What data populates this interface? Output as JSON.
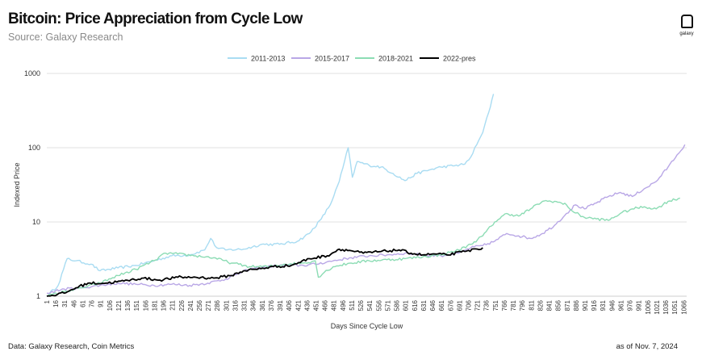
{
  "header": {
    "title": "Bitcoin: Price Appreciation from Cycle Low",
    "subtitle": "Source: Galaxy Research",
    "logo_text": "galaxy"
  },
  "footer": {
    "data_source": "Data: Galaxy Research, Coin Metrics",
    "as_of": "as of Nov. 7, 2024"
  },
  "chart_data": {
    "type": "line",
    "xlabel": "Days Since Cycle Low",
    "ylabel": "Indexed Price",
    "yscale": "log",
    "ylim": [
      1,
      1000
    ],
    "yticks": [
      1,
      10,
      100,
      1000
    ],
    "xticks": [
      1,
      16,
      31,
      46,
      61,
      76,
      91,
      106,
      121,
      136,
      151,
      166,
      181,
      196,
      211,
      226,
      241,
      256,
      271,
      286,
      301,
      316,
      331,
      346,
      361,
      376,
      391,
      406,
      421,
      436,
      451,
      466,
      481,
      496,
      511,
      526,
      541,
      556,
      571,
      586,
      601,
      616,
      631,
      646,
      661,
      676,
      691,
      706,
      721,
      736,
      751,
      766,
      781,
      796,
      811,
      826,
      841,
      856,
      871,
      886,
      901,
      916,
      931,
      946,
      961,
      976,
      991,
      1006,
      1021,
      1036,
      1051,
      1066
    ],
    "xlim": [
      1,
      1071
    ],
    "grid": "horizontal",
    "legend_position": "top-center",
    "series": [
      {
        "name": "2011-2013",
        "color": "#a9dcf2",
        "points": [
          [
            1,
            1
          ],
          [
            20,
            1.4
          ],
          [
            35,
            3.2
          ],
          [
            50,
            3.0
          ],
          [
            75,
            2.7
          ],
          [
            90,
            2.2
          ],
          [
            120,
            2.4
          ],
          [
            150,
            2.6
          ],
          [
            180,
            3.0
          ],
          [
            210,
            3.5
          ],
          [
            240,
            3.6
          ],
          [
            265,
            4.2
          ],
          [
            275,
            6.0
          ],
          [
            285,
            4.5
          ],
          [
            300,
            4.2
          ],
          [
            330,
            4.3
          ],
          [
            360,
            5.0
          ],
          [
            390,
            5.0
          ],
          [
            420,
            5.5
          ],
          [
            440,
            7.0
          ],
          [
            460,
            11
          ],
          [
            475,
            17
          ],
          [
            490,
            35
          ],
          [
            505,
            100
          ],
          [
            512,
            40
          ],
          [
            520,
            65
          ],
          [
            540,
            58
          ],
          [
            560,
            55
          ],
          [
            580,
            45
          ],
          [
            600,
            36
          ],
          [
            620,
            45
          ],
          [
            640,
            50
          ],
          [
            660,
            55
          ],
          [
            680,
            57
          ],
          [
            700,
            60
          ],
          [
            710,
            75
          ],
          [
            720,
            110
          ],
          [
            730,
            160
          ],
          [
            740,
            300
          ],
          [
            748,
            530
          ]
        ]
      },
      {
        "name": "2015-2017",
        "color": "#b9a7e6",
        "points": [
          [
            1,
            1.1
          ],
          [
            30,
            1.25
          ],
          [
            60,
            1.3
          ],
          [
            90,
            1.4
          ],
          [
            120,
            1.5
          ],
          [
            150,
            1.45
          ],
          [
            180,
            1.4
          ],
          [
            210,
            1.45
          ],
          [
            240,
            1.4
          ],
          [
            270,
            1.5
          ],
          [
            300,
            1.7
          ],
          [
            320,
            2.0
          ],
          [
            340,
            2.3
          ],
          [
            370,
            2.5
          ],
          [
            400,
            2.6
          ],
          [
            430,
            2.6
          ],
          [
            450,
            2.7
          ],
          [
            480,
            3.0
          ],
          [
            510,
            3.3
          ],
          [
            540,
            3.5
          ],
          [
            570,
            3.6
          ],
          [
            600,
            3.8
          ],
          [
            630,
            3.6
          ],
          [
            660,
            3.5
          ],
          [
            690,
            3.8
          ],
          [
            710,
            4.5
          ],
          [
            730,
            4.8
          ],
          [
            750,
            5.5
          ],
          [
            770,
            7.0
          ],
          [
            790,
            6.5
          ],
          [
            810,
            6.0
          ],
          [
            830,
            7.0
          ],
          [
            850,
            9.0
          ],
          [
            870,
            13
          ],
          [
            885,
            17
          ],
          [
            900,
            15
          ],
          [
            920,
            18
          ],
          [
            940,
            22
          ],
          [
            960,
            25
          ],
          [
            980,
            22
          ],
          [
            1000,
            28
          ],
          [
            1020,
            35
          ],
          [
            1040,
            55
          ],
          [
            1055,
            80
          ],
          [
            1068,
            110
          ]
        ]
      },
      {
        "name": "2018-2021",
        "color": "#8cdcb4",
        "points": [
          [
            1,
            1
          ],
          [
            30,
            1.15
          ],
          [
            60,
            1.3
          ],
          [
            90,
            1.5
          ],
          [
            120,
            1.9
          ],
          [
            150,
            2.3
          ],
          [
            180,
            3.0
          ],
          [
            200,
            3.8
          ],
          [
            220,
            3.7
          ],
          [
            250,
            3.5
          ],
          [
            280,
            3.3
          ],
          [
            310,
            2.8
          ],
          [
            340,
            2.5
          ],
          [
            370,
            2.5
          ],
          [
            400,
            2.7
          ],
          [
            430,
            2.8
          ],
          [
            450,
            3.0
          ],
          [
            455,
            1.8
          ],
          [
            465,
            2.1
          ],
          [
            480,
            2.5
          ],
          [
            510,
            2.8
          ],
          [
            540,
            3.0
          ],
          [
            570,
            3.1
          ],
          [
            600,
            3.2
          ],
          [
            630,
            3.4
          ],
          [
            660,
            3.6
          ],
          [
            690,
            4.2
          ],
          [
            710,
            5.0
          ],
          [
            730,
            6.5
          ],
          [
            750,
            10
          ],
          [
            770,
            13
          ],
          [
            790,
            12
          ],
          [
            810,
            15
          ],
          [
            830,
            19
          ],
          [
            850,
            19
          ],
          [
            870,
            17
          ],
          [
            880,
            14
          ],
          [
            900,
            11.5
          ],
          [
            920,
            11
          ],
          [
            940,
            10.5
          ],
          [
            960,
            13
          ],
          [
            980,
            15
          ],
          [
            1000,
            16
          ],
          [
            1020,
            15
          ],
          [
            1040,
            19
          ],
          [
            1060,
            21
          ]
        ]
      },
      {
        "name": "2022-pres",
        "color": "#000000",
        "points": [
          [
            1,
            1
          ],
          [
            30,
            1.1
          ],
          [
            50,
            1.3
          ],
          [
            70,
            1.5
          ],
          [
            100,
            1.5
          ],
          [
            130,
            1.6
          ],
          [
            160,
            1.75
          ],
          [
            190,
            1.65
          ],
          [
            220,
            1.8
          ],
          [
            250,
            1.8
          ],
          [
            280,
            1.75
          ],
          [
            310,
            1.9
          ],
          [
            330,
            2.2
          ],
          [
            350,
            2.3
          ],
          [
            380,
            2.5
          ],
          [
            410,
            2.6
          ],
          [
            440,
            3.2
          ],
          [
            470,
            3.5
          ],
          [
            490,
            4.3
          ],
          [
            510,
            4.1
          ],
          [
            530,
            3.8
          ],
          [
            560,
            4.0
          ],
          [
            590,
            4.2
          ],
          [
            610,
            3.8
          ],
          [
            630,
            3.6
          ],
          [
            650,
            3.7
          ],
          [
            670,
            3.6
          ],
          [
            700,
            4.0
          ],
          [
            730,
            4.5
          ]
        ]
      }
    ]
  }
}
